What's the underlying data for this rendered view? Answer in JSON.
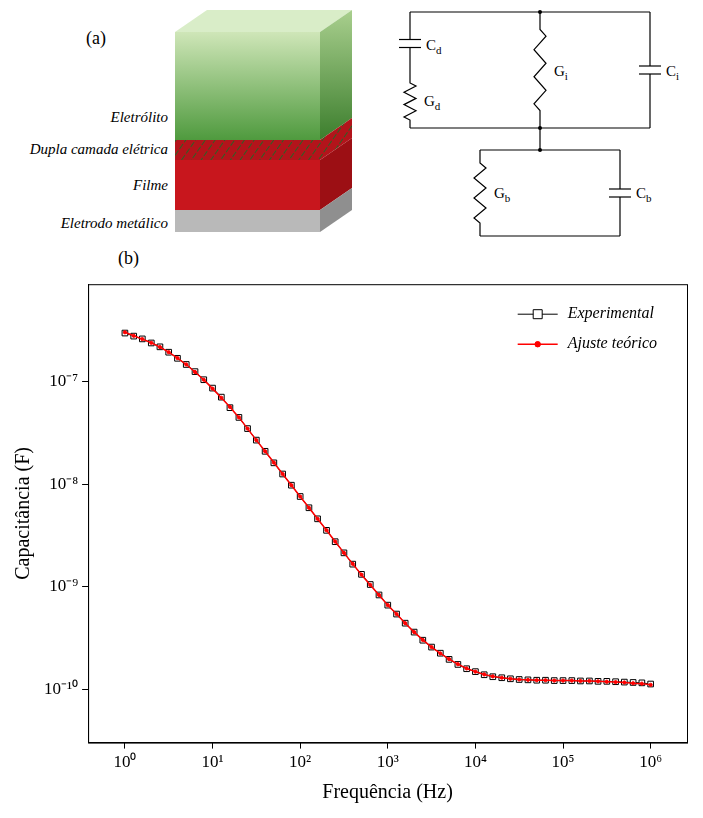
{
  "panels": {
    "a": {
      "label": "(a)",
      "layers": [
        "Eletrólito",
        "Dupla camada elétrica",
        "Filme",
        "Eletrodo metálico"
      ],
      "circuit": [
        {
          "symbol": "C",
          "subscript": "d"
        },
        {
          "symbol": "G",
          "subscript": "d"
        },
        {
          "symbol": "G",
          "subscript": "i"
        },
        {
          "symbol": "C",
          "subscript": "i"
        },
        {
          "symbol": "G",
          "subscript": "b"
        },
        {
          "symbol": "C",
          "subscript": "b"
        }
      ]
    },
    "b": {
      "label": "(b)"
    }
  },
  "chart_data": {
    "type": "line",
    "log": true,
    "grid": false,
    "legend": "top-right",
    "x_label": "Frequência (Hz)",
    "y_label": "Capacitância (F)",
    "xlim": [
      0.38,
      2600000
    ],
    "ylim": [
      3e-11,
      9e-07
    ],
    "xticks": [
      {
        "value": 1,
        "label": "10⁰"
      },
      {
        "value": 10,
        "label": "10¹"
      },
      {
        "value": 100,
        "label": "10²"
      },
      {
        "value": 1000,
        "label": "10³"
      },
      {
        "value": 10000,
        "label": "10⁴"
      },
      {
        "value": 100000,
        "label": "10⁵"
      },
      {
        "value": 1000000,
        "label": "10⁶"
      }
    ],
    "yticks": [
      {
        "value": 1e-10,
        "label": "10⁻¹⁰"
      },
      {
        "value": 1e-09,
        "label": "10⁻⁹"
      },
      {
        "value": 1e-08,
        "label": "10⁻⁸"
      },
      {
        "value": 1e-07,
        "label": "10⁻⁷"
      }
    ],
    "x": [
      1,
      1.26,
      1.58,
      2,
      2.51,
      3.16,
      3.98,
      5.01,
      6.31,
      7.94,
      10,
      12.6,
      15.8,
      20,
      25.1,
      31.6,
      39.8,
      50.1,
      63.1,
      79.4,
      100,
      126,
      158,
      200,
      251,
      316,
      398,
      501,
      631,
      794,
      1000,
      1260,
      1580,
      2000,
      2510,
      3160,
      3980,
      5010,
      6310,
      7940,
      10000,
      12600,
      15800,
      20000,
      25100,
      31600,
      39800,
      50100,
      63100,
      79400,
      100000,
      126000,
      158000,
      200000,
      251000,
      316000,
      398000,
      501000,
      631000,
      794000,
      1000000
    ],
    "series": [
      {
        "name": "Experimental",
        "color": "#000000",
        "marker": "square",
        "line_style": "solid",
        "values": [
          3e-07,
          2.8e-07,
          2.63e-07,
          2.4e-07,
          2.2e-07,
          1.95e-07,
          1.7e-07,
          1.48e-07,
          1.26e-07,
          1.05e-07,
          8.7e-08,
          7.1e-08,
          5.6e-08,
          4.5e-08,
          3.5e-08,
          2.7e-08,
          2.1e-08,
          1.62e-08,
          1.26e-08,
          9.8e-09,
          7.6e-09,
          5.9e-09,
          4.6e-09,
          3.55e-09,
          2.75e-09,
          2.14e-09,
          1.66e-09,
          1.32e-09,
          1.05e-09,
          8.3e-10,
          6.6e-10,
          5.4e-10,
          4.4e-10,
          3.6e-10,
          3e-10,
          2.57e-10,
          2.24e-10,
          1.95e-10,
          1.74e-10,
          1.58e-10,
          1.48e-10,
          1.38e-10,
          1.32e-10,
          1.29e-10,
          1.26e-10,
          1.24e-10,
          1.23e-10,
          1.22e-10,
          1.22e-10,
          1.21e-10,
          1.21e-10,
          1.21e-10,
          1.2e-10,
          1.2e-10,
          1.19e-10,
          1.19e-10,
          1.18e-10,
          1.17e-10,
          1.16e-10,
          1.15e-10,
          1.12e-10
        ]
      },
      {
        "name": "Ajuste teórico",
        "color": "#ff0000",
        "marker": "circle",
        "line_style": "solid",
        "values": [
          3.05e-07,
          2.82e-07,
          2.62e-07,
          2.41e-07,
          2.19e-07,
          1.95e-07,
          1.71e-07,
          1.48e-07,
          1.25e-07,
          1.05e-07,
          8.6e-08,
          7e-08,
          5.7e-08,
          4.5e-08,
          3.5e-08,
          2.7e-08,
          2.1e-08,
          1.63e-08,
          1.26e-08,
          9.8e-09,
          7.6e-09,
          5.9e-09,
          4.6e-09,
          3.56e-09,
          2.76e-09,
          2.14e-09,
          1.67e-09,
          1.31e-09,
          1.04e-09,
          8.3e-10,
          6.6e-10,
          5.4e-10,
          4.4e-10,
          3.6e-10,
          3.02e-10,
          2.57e-10,
          2.23e-10,
          1.96e-10,
          1.75e-10,
          1.59e-10,
          1.48e-10,
          1.39e-10,
          1.33e-10,
          1.29e-10,
          1.26e-10,
          1.24e-10,
          1.23e-10,
          1.22e-10,
          1.22e-10,
          1.21e-10,
          1.21e-10,
          1.21e-10,
          1.2e-10,
          1.2e-10,
          1.19e-10,
          1.18e-10,
          1.17e-10,
          1.16e-10,
          1.14e-10,
          1.13e-10,
          1.1e-10
        ]
      }
    ]
  }
}
